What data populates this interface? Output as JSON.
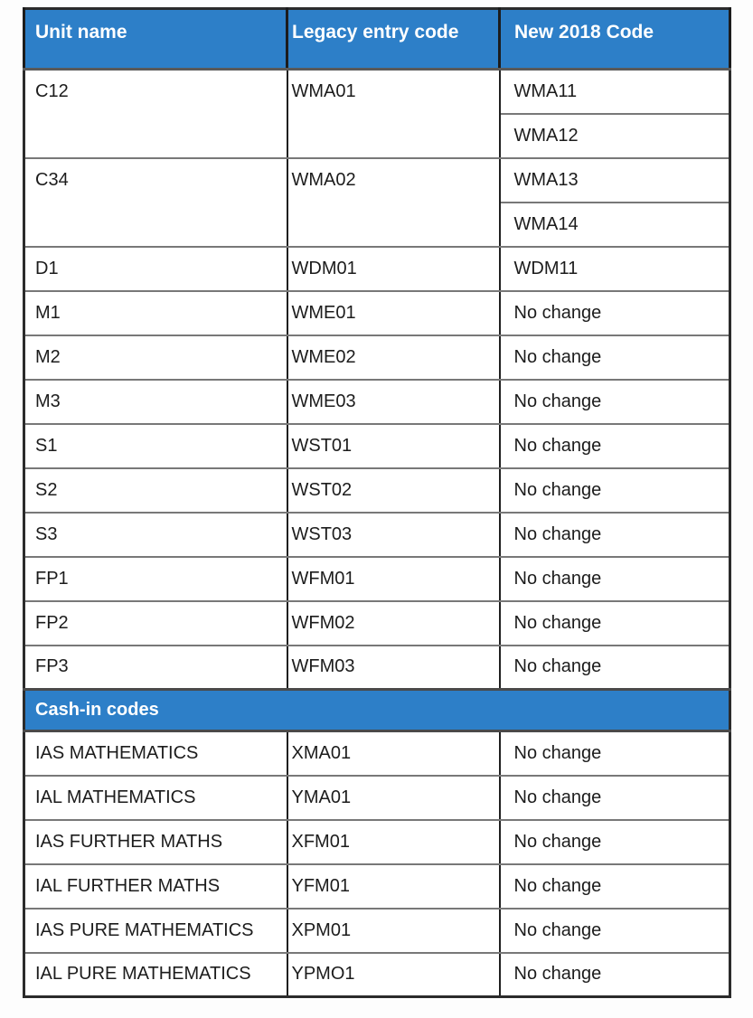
{
  "table": {
    "header": {
      "bg_color": "#2d7fc8",
      "text_color": "#ffffff",
      "columns": [
        "Unit name",
        "Legacy entry code",
        "New 2018 Code"
      ]
    },
    "unit_rows": [
      {
        "unit": "C12",
        "legacy": "WMA01",
        "new_codes": [
          "WMA11",
          "WMA12"
        ]
      },
      {
        "unit": "C34",
        "legacy": "WMA02",
        "new_codes": [
          "WMA13",
          "WMA14"
        ]
      },
      {
        "unit": "D1",
        "legacy": "WDM01",
        "new_codes": [
          "WDM11"
        ]
      },
      {
        "unit": "M1",
        "legacy": "WME01",
        "new_codes": [
          "No change"
        ]
      },
      {
        "unit": "M2",
        "legacy": "WME02",
        "new_codes": [
          "No change"
        ]
      },
      {
        "unit": "M3",
        "legacy": "WME03",
        "new_codes": [
          "No change"
        ]
      },
      {
        "unit": "S1",
        "legacy": "WST01",
        "new_codes": [
          "No change"
        ]
      },
      {
        "unit": "S2",
        "legacy": "WST02",
        "new_codes": [
          "No change"
        ]
      },
      {
        "unit": "S3",
        "legacy": "WST03",
        "new_codes": [
          "No change"
        ]
      },
      {
        "unit": "FP1",
        "legacy": "WFM01",
        "new_codes": [
          "No change"
        ]
      },
      {
        "unit": "FP2",
        "legacy": "WFM02",
        "new_codes": [
          "No change"
        ]
      },
      {
        "unit": "FP3",
        "legacy": "WFM03",
        "new_codes": [
          "No change"
        ]
      }
    ],
    "section_header": {
      "label": "Cash-in codes",
      "bg_color": "#2d7fc8"
    },
    "cashin_rows": [
      {
        "unit": "IAS MATHEMATICS",
        "legacy": "XMA01",
        "new": "No change"
      },
      {
        "unit": "IAL MATHEMATICS",
        "legacy": "YMA01",
        "new": "No change"
      },
      {
        "unit": "IAS FURTHER MATHS",
        "legacy": "XFM01",
        "new": "No change"
      },
      {
        "unit": "IAL FURTHER MATHS",
        "legacy": "YFM01",
        "new": "No change"
      },
      {
        "unit": "IAS PURE MATHEMATICS",
        "legacy": "XPM01",
        "new": "No change"
      },
      {
        "unit": "IAL PURE MATHEMATICS",
        "legacy": "YPMO1",
        "new": "No change"
      }
    ]
  }
}
